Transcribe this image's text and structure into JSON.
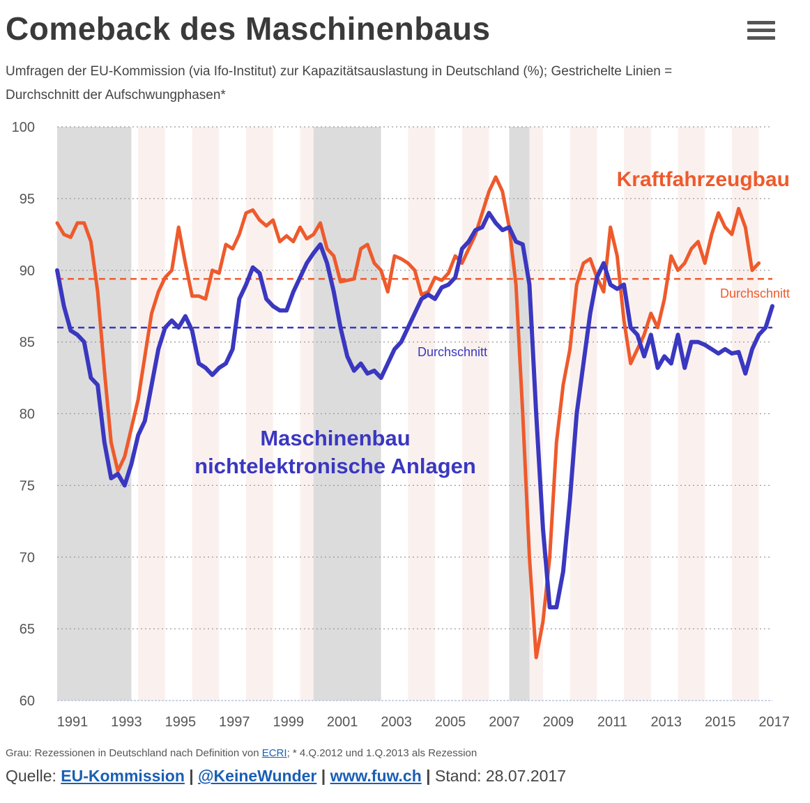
{
  "header": {
    "title": "Comeback des Maschinenbaus",
    "subtitle": "Umfragen der EU-Kommission (via Ifo-Institut) zur Kapazitätsauslastung in Deutschland (%); Gestrichelte Linien = Durchschnitt der Aufschwungphasen*",
    "menu_icon": "hamburger-menu-icon"
  },
  "chart_data": {
    "type": "line",
    "y_ticks": [
      "100",
      "95",
      "90",
      "85",
      "80",
      "75",
      "70",
      "65",
      "60"
    ],
    "x_ticks": [
      "1991",
      "1993",
      "1995",
      "1997",
      "1999",
      "2001",
      "2003",
      "2005",
      "2007",
      "2009",
      "2011",
      "2013",
      "2015",
      "2017"
    ],
    "ylim": [
      60,
      100
    ],
    "xlim": [
      1991,
      2017.5
    ],
    "grid": "horizontal dotted",
    "recessions": [
      [
        1991.0,
        1993.75
      ],
      [
        2000.5,
        2003.0
      ],
      [
        2007.75,
        2008.5
      ]
    ],
    "series": [
      {
        "name": "Kraftfahrzeugbau",
        "color": "#ee5a2c",
        "average_label": "Durchschnitt",
        "average": 89.4,
        "points": [
          [
            1991.0,
            93.3
          ],
          [
            1991.25,
            92.5
          ],
          [
            1991.5,
            92.3
          ],
          [
            1991.75,
            93.3
          ],
          [
            1992.0,
            93.3
          ],
          [
            1992.25,
            92.0
          ],
          [
            1992.5,
            88.5
          ],
          [
            1992.75,
            83.0
          ],
          [
            1993.0,
            78.0
          ],
          [
            1993.25,
            76.0
          ],
          [
            1993.5,
            77.0
          ],
          [
            1993.75,
            79.0
          ],
          [
            1994.0,
            81.0
          ],
          [
            1994.25,
            84.0
          ],
          [
            1994.5,
            87.0
          ],
          [
            1994.75,
            88.5
          ],
          [
            1995.0,
            89.5
          ],
          [
            1995.25,
            90.0
          ],
          [
            1995.5,
            93.0
          ],
          [
            1995.75,
            90.5
          ],
          [
            1996.0,
            88.2
          ],
          [
            1996.25,
            88.2
          ],
          [
            1996.5,
            88.0
          ],
          [
            1996.75,
            90.0
          ],
          [
            1997.0,
            89.8
          ],
          [
            1997.25,
            91.8
          ],
          [
            1997.5,
            91.5
          ],
          [
            1997.75,
            92.5
          ],
          [
            1998.0,
            94.0
          ],
          [
            1998.25,
            94.2
          ],
          [
            1998.5,
            93.5
          ],
          [
            1998.75,
            93.1
          ],
          [
            1999.0,
            93.5
          ],
          [
            1999.25,
            92.0
          ],
          [
            1999.5,
            92.4
          ],
          [
            1999.75,
            92.0
          ],
          [
            2000.0,
            93.0
          ],
          [
            2000.25,
            92.2
          ],
          [
            2000.5,
            92.5
          ],
          [
            2000.75,
            93.3
          ],
          [
            2001.0,
            91.5
          ],
          [
            2001.25,
            91.0
          ],
          [
            2001.5,
            89.2
          ],
          [
            2001.75,
            89.3
          ],
          [
            2002.0,
            89.4
          ],
          [
            2002.25,
            91.5
          ],
          [
            2002.5,
            91.8
          ],
          [
            2002.75,
            90.5
          ],
          [
            2003.0,
            90.0
          ],
          [
            2003.25,
            88.5
          ],
          [
            2003.5,
            91.0
          ],
          [
            2003.75,
            90.8
          ],
          [
            2004.0,
            90.5
          ],
          [
            2004.25,
            90.0
          ],
          [
            2004.5,
            88.3
          ],
          [
            2004.75,
            88.5
          ],
          [
            2005.0,
            89.5
          ],
          [
            2005.25,
            89.3
          ],
          [
            2005.5,
            89.8
          ],
          [
            2005.75,
            91.0
          ],
          [
            2006.0,
            90.5
          ],
          [
            2006.25,
            91.5
          ],
          [
            2006.5,
            92.5
          ],
          [
            2006.75,
            94.0
          ],
          [
            2007.0,
            95.5
          ],
          [
            2007.25,
            96.5
          ],
          [
            2007.5,
            95.5
          ],
          [
            2007.75,
            93.0
          ],
          [
            2008.0,
            89.0
          ],
          [
            2008.25,
            80.0
          ],
          [
            2008.5,
            70.0
          ],
          [
            2008.75,
            63.0
          ],
          [
            2009.0,
            65.5
          ],
          [
            2009.25,
            70.0
          ],
          [
            2009.5,
            78.0
          ],
          [
            2009.75,
            82.0
          ],
          [
            2010.0,
            84.5
          ],
          [
            2010.25,
            89.0
          ],
          [
            2010.5,
            90.5
          ],
          [
            2010.75,
            90.8
          ],
          [
            2011.0,
            89.5
          ],
          [
            2011.25,
            88.5
          ],
          [
            2011.5,
            93.0
          ],
          [
            2011.75,
            91.0
          ],
          [
            2012.0,
            86.5
          ],
          [
            2012.25,
            83.5
          ],
          [
            2012.5,
            84.5
          ],
          [
            2012.75,
            85.5
          ],
          [
            2013.0,
            87.0
          ],
          [
            2013.25,
            86.0
          ],
          [
            2013.5,
            88.0
          ],
          [
            2013.75,
            91.0
          ],
          [
            2014.0,
            90.0
          ],
          [
            2014.25,
            90.5
          ],
          [
            2014.5,
            91.5
          ],
          [
            2014.75,
            92.0
          ],
          [
            2015.0,
            90.5
          ],
          [
            2015.25,
            92.5
          ],
          [
            2015.5,
            94.0
          ],
          [
            2015.75,
            93.0
          ],
          [
            2016.0,
            92.5
          ],
          [
            2016.25,
            94.3
          ],
          [
            2016.5,
            93.0
          ],
          [
            2016.75,
            90.0
          ],
          [
            2017.0,
            90.5
          ]
        ]
      },
      {
        "name": "Maschinenbau nichtelektronische Anlagen",
        "color": "#3a37c0",
        "average_label": "Durchschnitt",
        "average": 86.0,
        "points": [
          [
            1991.0,
            90.0
          ],
          [
            1991.25,
            87.5
          ],
          [
            1991.5,
            85.8
          ],
          [
            1991.75,
            85.5
          ],
          [
            1992.0,
            85.0
          ],
          [
            1992.25,
            82.5
          ],
          [
            1992.5,
            82.0
          ],
          [
            1992.75,
            78.0
          ],
          [
            1993.0,
            75.5
          ],
          [
            1993.25,
            75.8
          ],
          [
            1993.5,
            75.0
          ],
          [
            1993.75,
            76.5
          ],
          [
            1994.0,
            78.5
          ],
          [
            1994.25,
            79.5
          ],
          [
            1994.5,
            82.0
          ],
          [
            1994.75,
            84.5
          ],
          [
            1995.0,
            86.0
          ],
          [
            1995.25,
            86.5
          ],
          [
            1995.5,
            86.0
          ],
          [
            1995.75,
            86.8
          ],
          [
            1996.0,
            85.8
          ],
          [
            1996.25,
            83.5
          ],
          [
            1996.5,
            83.2
          ],
          [
            1996.75,
            82.7
          ],
          [
            1997.0,
            83.2
          ],
          [
            1997.25,
            83.5
          ],
          [
            1997.5,
            84.5
          ],
          [
            1997.75,
            88.0
          ],
          [
            1998.0,
            89.0
          ],
          [
            1998.25,
            90.2
          ],
          [
            1998.5,
            89.8
          ],
          [
            1998.75,
            88.0
          ],
          [
            1999.0,
            87.5
          ],
          [
            1999.25,
            87.2
          ],
          [
            1999.5,
            87.2
          ],
          [
            1999.75,
            88.5
          ],
          [
            2000.0,
            89.5
          ],
          [
            2000.25,
            90.5
          ],
          [
            2000.5,
            91.2
          ],
          [
            2000.75,
            91.8
          ],
          [
            2001.0,
            90.5
          ],
          [
            2001.25,
            88.5
          ],
          [
            2001.5,
            86.0
          ],
          [
            2001.75,
            84.0
          ],
          [
            2002.0,
            83.0
          ],
          [
            2002.25,
            83.5
          ],
          [
            2002.5,
            82.8
          ],
          [
            2002.75,
            83.0
          ],
          [
            2003.0,
            82.5
          ],
          [
            2003.25,
            83.5
          ],
          [
            2003.5,
            84.5
          ],
          [
            2003.75,
            85.0
          ],
          [
            2004.0,
            86.0
          ],
          [
            2004.25,
            87.0
          ],
          [
            2004.5,
            88.0
          ],
          [
            2004.75,
            88.3
          ],
          [
            2005.0,
            88.0
          ],
          [
            2005.25,
            88.8
          ],
          [
            2005.5,
            89.0
          ],
          [
            2005.75,
            89.5
          ],
          [
            2006.0,
            91.5
          ],
          [
            2006.25,
            92.0
          ],
          [
            2006.5,
            92.8
          ],
          [
            2006.75,
            93.0
          ],
          [
            2007.0,
            94.0
          ],
          [
            2007.25,
            93.3
          ],
          [
            2007.5,
            92.8
          ],
          [
            2007.75,
            93.0
          ],
          [
            2008.0,
            92.0
          ],
          [
            2008.25,
            91.8
          ],
          [
            2008.5,
            89.0
          ],
          [
            2008.75,
            80.0
          ],
          [
            2009.0,
            72.0
          ],
          [
            2009.25,
            66.5
          ],
          [
            2009.5,
            66.5
          ],
          [
            2009.75,
            69.0
          ],
          [
            2010.0,
            74.0
          ],
          [
            2010.25,
            80.0
          ],
          [
            2010.5,
            83.5
          ],
          [
            2010.75,
            87.0
          ],
          [
            2011.0,
            89.5
          ],
          [
            2011.25,
            90.5
          ],
          [
            2011.5,
            89.0
          ],
          [
            2011.75,
            88.7
          ],
          [
            2012.0,
            89.0
          ],
          [
            2012.25,
            86.0
          ],
          [
            2012.5,
            85.5
          ],
          [
            2012.75,
            84.0
          ],
          [
            2013.0,
            85.5
          ],
          [
            2013.25,
            83.2
          ],
          [
            2013.5,
            84.0
          ],
          [
            2013.75,
            83.5
          ],
          [
            2014.0,
            85.5
          ],
          [
            2014.25,
            83.2
          ],
          [
            2014.5,
            85.0
          ],
          [
            2014.75,
            85.0
          ],
          [
            2015.0,
            84.8
          ],
          [
            2015.25,
            84.5
          ],
          [
            2015.5,
            84.2
          ],
          [
            2015.75,
            84.5
          ],
          [
            2016.0,
            84.2
          ],
          [
            2016.25,
            84.3
          ],
          [
            2016.5,
            82.8
          ],
          [
            2016.75,
            84.5
          ],
          [
            2017.0,
            85.5
          ],
          [
            2017.25,
            86.0
          ],
          [
            2017.5,
            87.5
          ]
        ]
      }
    ]
  },
  "labels": {
    "kfz": "Kraftfahrzeugbau",
    "maschinen_line1": "Maschinenbau",
    "maschinen_line2": "nichtelektronische Anlagen",
    "avg_kfz": "Durchschnitt",
    "avg_maschinen": "Durchschnitt"
  },
  "footer": {
    "note_before": "Grau: Rezessionen in Deutschland nach Definition von ",
    "note_link": "ECRI",
    "note_after": "; * 4.Q.2012 und 1.Q.2013 als Rezession",
    "source_label": "Quelle: ",
    "source_link1": "EU-Kommission",
    "sep1": " | ",
    "source_link2": "@KeineWunder",
    "sep2": " | ",
    "source_link3": "www.fuw.ch",
    "sep3": " | ",
    "stand": "Stand: 28.07.2017"
  }
}
